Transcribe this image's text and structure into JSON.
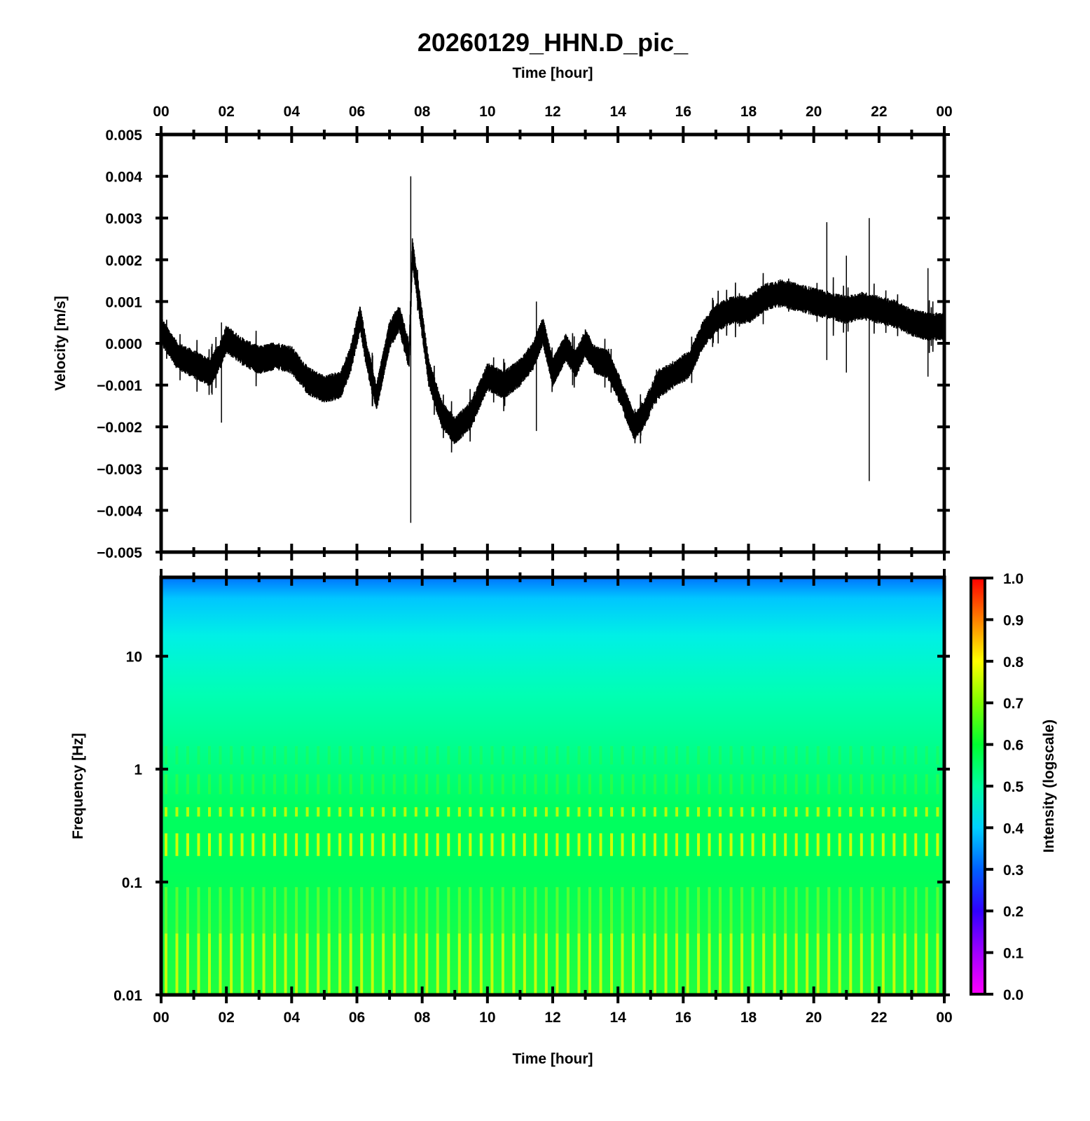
{
  "chart_data": [
    {
      "type": "line",
      "title": "20260129_HHN.D_pic_",
      "xlabel": "Time [hour]",
      "ylabel": "Velocity [m/s]",
      "xlim": [
        0,
        24
      ],
      "ylim": [
        -0.005,
        0.005
      ],
      "x_ticks": [
        "00",
        "02",
        "04",
        "06",
        "08",
        "10",
        "12",
        "14",
        "16",
        "18",
        "20",
        "22",
        "00"
      ],
      "y_ticks": [
        "0.005",
        "0.004",
        "0.003",
        "0.002",
        "0.001",
        "0.000",
        "−0.001",
        "−0.002",
        "−0.003",
        "−0.004",
        "−0.005"
      ],
      "series": [
        {
          "name": "HHN velocity (trend)",
          "x": [
            0,
            0.5,
            1,
            1.5,
            1.8,
            2,
            2.5,
            3,
            3.5,
            4,
            4.5,
            5,
            5.5,
            5.8,
            6.1,
            6.3,
            6.6,
            7.0,
            7.3,
            7.6,
            7.7,
            8.2,
            8.6,
            9.0,
            9.5,
            10,
            10.5,
            11,
            11.4,
            11.7,
            12.0,
            12.4,
            12.7,
            13.0,
            13.3,
            13.7,
            14.1,
            14.5,
            14.8,
            15.2,
            15.8,
            16.2,
            16.6,
            17,
            17.5,
            18,
            18.5,
            19,
            19.5,
            20,
            20.5,
            21,
            21.5,
            22,
            22.5,
            23,
            23.5,
            24
          ],
          "values": [
            0.0003,
            -0.0003,
            -0.0005,
            -0.0007,
            -0.0003,
            0.0001,
            -0.0002,
            -0.0004,
            -0.0003,
            -0.0004,
            -0.0009,
            -0.0011,
            -0.001,
            -0.0004,
            0.0006,
            -0.0003,
            -0.0013,
            0.0002,
            0.0006,
            -0.0003,
            0.0022,
            -0.0007,
            -0.0017,
            -0.0021,
            -0.0017,
            -0.0008,
            -0.001,
            -0.0007,
            -0.0003,
            0.0003,
            -0.0007,
            -0.0001,
            -0.0005,
            0.0,
            -0.0004,
            -0.0005,
            -0.0012,
            -0.002,
            -0.0017,
            -0.001,
            -0.0007,
            -0.0005,
            0.0002,
            0.0006,
            0.0008,
            0.0008,
            0.0011,
            0.0012,
            0.0011,
            0.001,
            0.0009,
            0.0008,
            0.0009,
            0.0008,
            0.0007,
            0.0005,
            0.0004,
            0.0004
          ]
        },
        {
          "name": "spikes",
          "x": [
            1.85,
            7.65,
            11.5,
            20.4,
            21.0,
            21.7,
            23.5
          ],
          "high": [
            0.0005,
            0.004,
            0.001,
            0.0029,
            0.0021,
            0.003,
            0.0018
          ],
          "low": [
            -0.0019,
            -0.0043,
            -0.0021,
            -0.0004,
            -0.0007,
            -0.0033,
            -0.0008
          ]
        }
      ]
    },
    {
      "type": "heatmap",
      "title": "",
      "xlabel": "Time [hour]",
      "ylabel": "Frequency [Hz]",
      "xlim": [
        0,
        24
      ],
      "ylim": [
        0.01,
        50
      ],
      "y_scale": "log",
      "x_ticks": [
        "00",
        "02",
        "04",
        "06",
        "08",
        "10",
        "12",
        "14",
        "16",
        "18",
        "20",
        "22",
        "00"
      ],
      "y_ticks": [
        "10",
        "1",
        "0.1",
        "0.01"
      ],
      "frequency_bands_hz": [
        0.01,
        0.05,
        0.1,
        0.2,
        0.3,
        0.5,
        0.8,
        1,
        2,
        5,
        10,
        20,
        35,
        50
      ],
      "band_intensity": [
        0.63,
        0.62,
        0.62,
        0.72,
        0.63,
        0.68,
        0.63,
        0.61,
        0.55,
        0.5,
        0.47,
        0.44,
        0.4,
        0.32
      ],
      "colorbar": {
        "label": "Intensity (logscale)",
        "range": [
          0,
          1
        ],
        "ticks": [
          "1.0",
          "0.9",
          "0.8",
          "0.7",
          "0.6",
          "0.5",
          "0.4",
          "0.3",
          "0.2",
          "0.1",
          "0.0"
        ]
      }
    }
  ]
}
